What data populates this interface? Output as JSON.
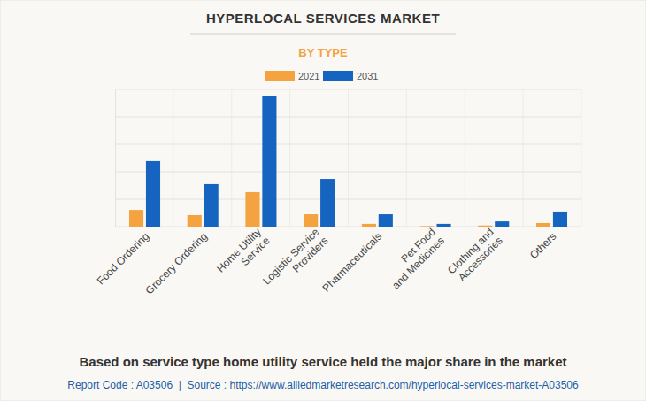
{
  "chart_data": {
    "type": "bar",
    "title": "HYPERLOCAL SERVICES MARKET",
    "subtitle": "BY TYPE",
    "caption": "Based on service type home utility service held the major share in the market",
    "source": "Report Code : A03506  |  Source : https://www.alliedmarketresearch.com/hyperlocal-services-market-A03506",
    "categories": [
      "Food Ordering",
      "Grocery Ordering",
      "Home Utility\nService",
      "Logistic Service\nProviders",
      "Pharmaceuticals",
      "Pet Food\nand Medicines",
      "Clothing and\nAccessories",
      "Others"
    ],
    "series": [
      {
        "name": "2021",
        "color": "#f4a340",
        "values": [
          0.61,
          0.42,
          1.26,
          0.45,
          0.1,
          0.02,
          0.04,
          0.13
        ]
      },
      {
        "name": "2031",
        "color": "#1565c0",
        "values": [
          2.39,
          1.55,
          4.77,
          1.74,
          0.45,
          0.1,
          0.19,
          0.55
        ]
      }
    ],
    "ylim": [
      0,
      5
    ],
    "yticks": [
      0,
      1,
      2,
      3,
      4,
      5
    ],
    "grid": true,
    "legend": "top",
    "tick_labels": "x"
  }
}
